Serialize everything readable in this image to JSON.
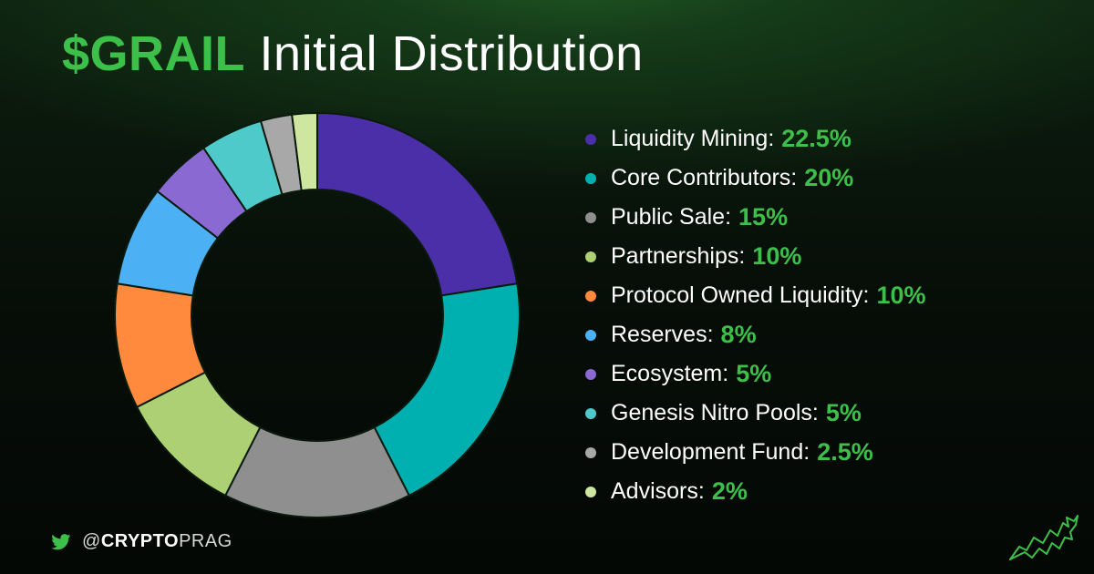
{
  "title": {
    "highlight": "$GRAIL",
    "rest": "Initial Distribution"
  },
  "chart_data": {
    "type": "pie",
    "style": "donut",
    "legend_position": "right",
    "slices": [
      {
        "label": "Liquidity Mining",
        "value": 22.5,
        "display": "22.5%",
        "color": "#4a2fa8"
      },
      {
        "label": "Core Contributors",
        "value": 20,
        "display": "20%",
        "color": "#00b0b0"
      },
      {
        "label": "Public Sale",
        "value": 15,
        "display": "15%",
        "color": "#8f8f8f"
      },
      {
        "label": "Partnerships",
        "value": 10,
        "display": "10%",
        "color": "#acd073"
      },
      {
        "label": "Protocol Owned Liquidity",
        "value": 10,
        "display": "10%",
        "color": "#ff8a3d"
      },
      {
        "label": "Reserves",
        "value": 8,
        "display": "8%",
        "color": "#4cb0f5"
      },
      {
        "label": "Ecosystem",
        "value": 5,
        "display": "5%",
        "color": "#8a6ad2"
      },
      {
        "label": "Genesis Nitro Pools",
        "value": 5,
        "display": "5%",
        "color": "#4ecaca"
      },
      {
        "label": "Development Fund",
        "value": 2.5,
        "display": "2.5%",
        "color": "#a8a8a8"
      },
      {
        "label": "Advisors",
        "value": 2,
        "display": "2%",
        "color": "#cfe6a0"
      }
    ]
  },
  "legend": {
    "separator": ":",
    "items": [
      {
        "label": "Liquidity Mining",
        "pct": "22.5%"
      },
      {
        "label": "Core Contributors",
        "pct": "20%"
      },
      {
        "label": "Public Sale",
        "pct": "15%"
      },
      {
        "label": "Partnerships",
        "pct": "10%"
      },
      {
        "label": "Protocol Owned Liquidity",
        "pct": "10%"
      },
      {
        "label": "Reserves",
        "pct": "8%"
      },
      {
        "label": "Ecosystem",
        "pct": "5%"
      },
      {
        "label": "Genesis Nitro Pools",
        "pct": "5%"
      },
      {
        "label": "Development Fund",
        "pct": "2.5%"
      },
      {
        "label": "Advisors",
        "pct": "2%"
      }
    ]
  },
  "footer": {
    "icon": "twitter-bird-icon",
    "handle_prefix": "@",
    "handle_bold": "CRYPTO",
    "handle_rest": "PRAG"
  },
  "logo": {
    "icon": "bull-logo-icon"
  },
  "colors": {
    "accent": "#3cc04a",
    "text": "#ffffff"
  }
}
